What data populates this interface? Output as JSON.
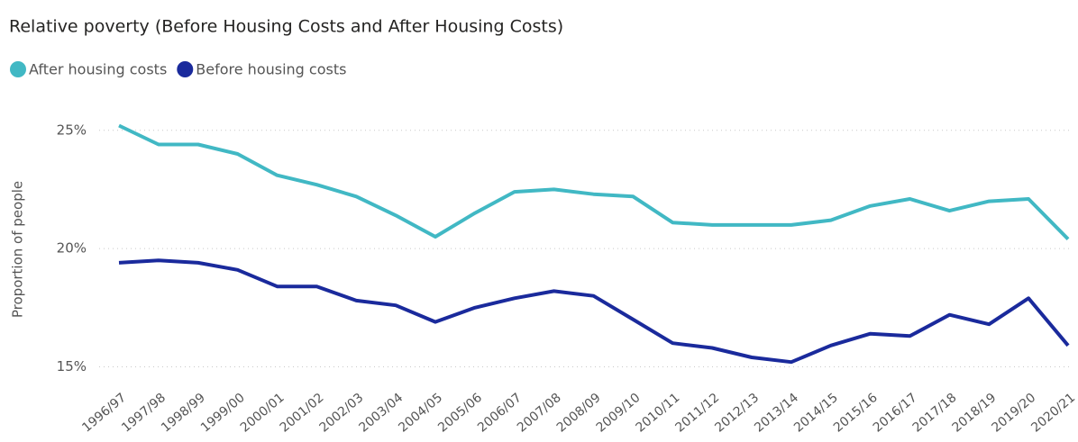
{
  "chart_data": {
    "type": "line",
    "title": "Relative poverty (Before Housing Costs and After Housing Costs)",
    "y_label": "Proportion of people",
    "categories": [
      "1996/97",
      "1997/98",
      "1998/99",
      "1999/00",
      "2000/01",
      "2001/02",
      "2002/03",
      "2003/04",
      "2004/05",
      "2005/06",
      "2006/07",
      "2007/08",
      "2008/09",
      "2009/10",
      "2010/11",
      "2011/12",
      "2012/13",
      "2013/14",
      "2014/15",
      "2015/16",
      "2016/17",
      "2017/18",
      "2018/19",
      "2019/20",
      "2020/21"
    ],
    "series": [
      {
        "name": "After housing costs",
        "color": "#41b8c4",
        "values": [
          25.2,
          24.4,
          24.4,
          24.0,
          23.1,
          22.7,
          22.2,
          21.4,
          20.5,
          21.5,
          22.4,
          22.5,
          22.3,
          22.2,
          21.1,
          21.0,
          21.0,
          21.0,
          21.2,
          21.8,
          22.1,
          21.6,
          22.0,
          22.1,
          20.4
        ]
      },
      {
        "name": "Before housing costs",
        "color": "#1a2a9c",
        "values": [
          19.4,
          19.5,
          19.4,
          19.1,
          18.4,
          18.4,
          17.8,
          17.6,
          16.9,
          17.5,
          17.9,
          18.2,
          18.0,
          17.0,
          16.0,
          15.8,
          15.4,
          15.2,
          15.9,
          16.4,
          16.3,
          17.2,
          16.8,
          17.9,
          15.9
        ]
      }
    ],
    "ylim": [
      14.6,
      25.6
    ],
    "yticks": [
      {
        "value": 15,
        "label": "15%"
      },
      {
        "value": 20,
        "label": "20%"
      },
      {
        "value": 25,
        "label": "25%"
      }
    ],
    "grid": true,
    "legend": "top-left"
  }
}
